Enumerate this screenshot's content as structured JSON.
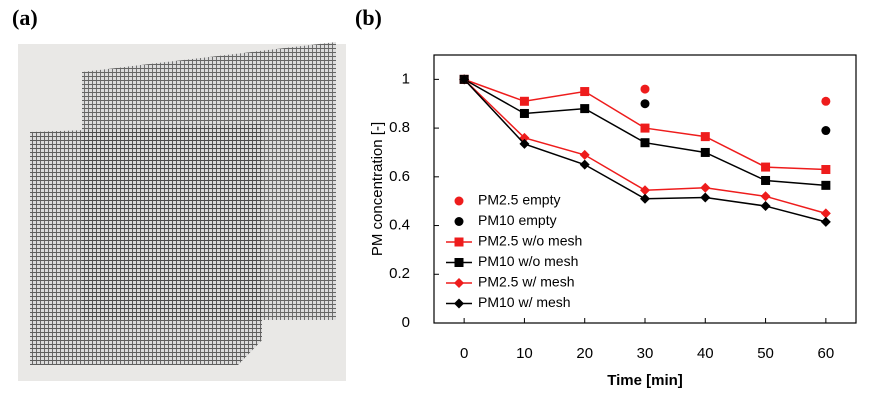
{
  "panel_labels": [
    "(a)",
    "(b)"
  ],
  "chart_data": {
    "type": "line",
    "xlabel": "Time [min]",
    "ylabel": "PM concentration [-]",
    "x": [
      0,
      10,
      20,
      30,
      40,
      50,
      60
    ],
    "xlim": [
      -5,
      65
    ],
    "xticks": [
      0,
      10,
      20,
      30,
      40,
      50,
      60
    ],
    "ylim": [
      0,
      1.1
    ],
    "yticks": [
      0,
      0.2,
      0.4,
      0.6,
      0.8,
      1
    ],
    "legend": "left",
    "series": [
      {
        "name": "PM2.5 empty",
        "color": "#ee1c1c",
        "marker": "circle",
        "line": false,
        "values": [
          1,
          null,
          null,
          0.96,
          null,
          null,
          0.91
        ]
      },
      {
        "name": "PM10 empty",
        "color": "#000000",
        "marker": "circle",
        "line": false,
        "values": [
          1,
          null,
          null,
          0.9,
          null,
          null,
          0.79
        ]
      },
      {
        "name": "PM2.5 w/o mesh",
        "color": "#ee1c1c",
        "marker": "square",
        "line": true,
        "values": [
          1,
          0.91,
          0.95,
          0.8,
          0.765,
          0.64,
          0.63
        ]
      },
      {
        "name": "PM10 w/o mesh",
        "color": "#000000",
        "marker": "square",
        "line": true,
        "values": [
          1,
          0.86,
          0.88,
          0.74,
          0.7,
          0.585,
          0.565
        ]
      },
      {
        "name": "PM2.5 w/ mesh",
        "color": "#ee1c1c",
        "marker": "diamond",
        "line": true,
        "values": [
          1,
          0.76,
          0.69,
          0.545,
          0.555,
          0.52,
          0.45
        ]
      },
      {
        "name": "PM10 w/ mesh",
        "color": "#000000",
        "marker": "diamond",
        "line": true,
        "values": [
          1,
          0.735,
          0.65,
          0.51,
          0.515,
          0.48,
          0.415
        ]
      }
    ]
  }
}
